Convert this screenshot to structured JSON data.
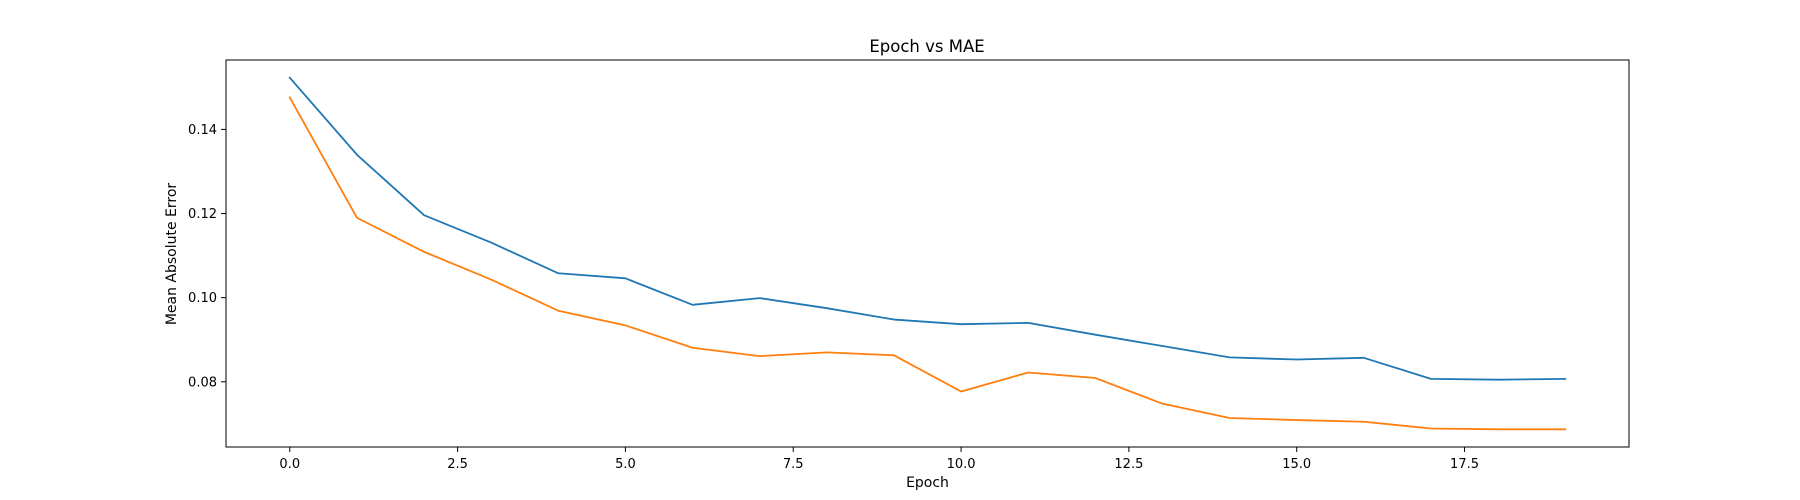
{
  "chart_data": {
    "type": "line",
    "title": "Epoch vs MAE",
    "xlabel": "Epoch",
    "ylabel": "Mean Absolute Error",
    "xlim": [
      -0.95,
      19.95
    ],
    "ylim": [
      0.0645,
      0.1565
    ],
    "x_ticks": [
      0.0,
      2.5,
      5.0,
      7.5,
      10.0,
      12.5,
      15.0,
      17.5
    ],
    "x_tick_labels": [
      "0.0",
      "2.5",
      "5.0",
      "7.5",
      "10.0",
      "12.5",
      "15.0",
      "17.5"
    ],
    "y_ticks": [
      0.08,
      0.1,
      0.12,
      0.14
    ],
    "y_tick_labels": [
      "0.08",
      "0.10",
      "0.12",
      "0.14"
    ],
    "grid": false,
    "x": [
      0,
      1,
      2,
      3,
      4,
      5,
      6,
      7,
      8,
      9,
      10,
      11,
      12,
      13,
      14,
      15,
      16,
      17,
      18,
      19
    ],
    "series": [
      {
        "color": "#1f77b4",
        "values": [
          0.1523,
          0.134,
          0.1196,
          0.1131,
          0.1058,
          0.1046,
          0.0983,
          0.0999,
          0.0975,
          0.0948,
          0.0937,
          0.094,
          0.0912,
          0.0885,
          0.0858,
          0.0853,
          0.0857,
          0.0807,
          0.0805,
          0.0807
        ]
      },
      {
        "color": "#ff7f0e",
        "values": [
          0.1476,
          0.119,
          0.1109,
          0.1043,
          0.0969,
          0.0934,
          0.0881,
          0.0861,
          0.087,
          0.0863,
          0.0777,
          0.0822,
          0.0809,
          0.0748,
          0.0714,
          0.0709,
          0.0705,
          0.0689,
          0.0687,
          0.0687
        ]
      }
    ]
  }
}
